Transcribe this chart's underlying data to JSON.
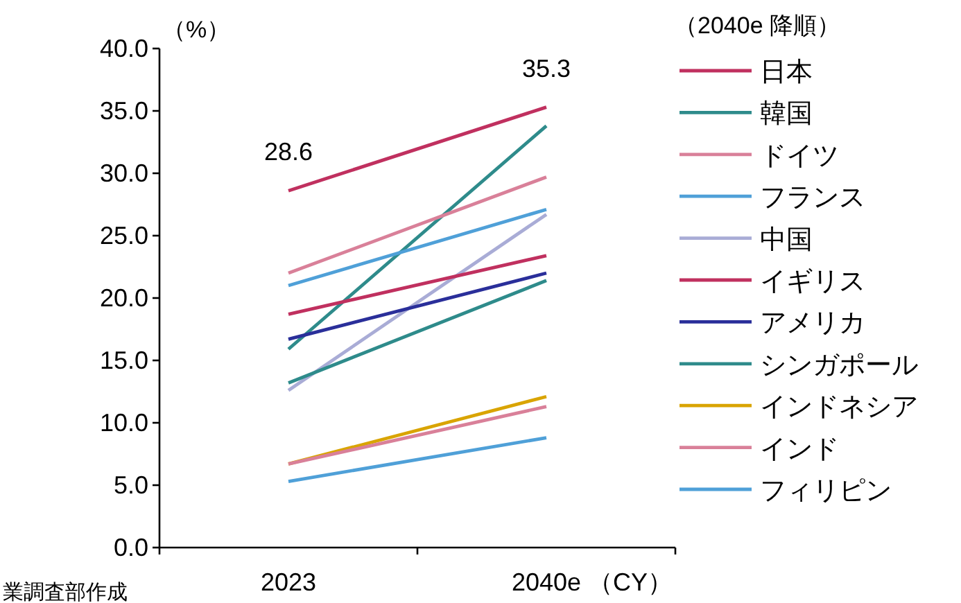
{
  "chart_data": {
    "type": "line",
    "ylabel": "（%）",
    "xlabel": "（CY）",
    "legend_title": "（2040e 降順）",
    "legend": "right",
    "categories": [
      "2023",
      "2040e"
    ],
    "ylim": [
      0,
      40
    ],
    "yticks": [
      {
        "value": 0,
        "label": "0.0"
      },
      {
        "value": 5,
        "label": "5.0"
      },
      {
        "value": 10,
        "label": "10.0"
      },
      {
        "value": 15,
        "label": "15.0"
      },
      {
        "value": 20,
        "label": "20.0"
      },
      {
        "value": 25,
        "label": "25.0"
      },
      {
        "value": 30,
        "label": "30.0"
      },
      {
        "value": 35,
        "label": "35.0"
      },
      {
        "value": 40,
        "label": "40.0"
      }
    ],
    "series": [
      {
        "name": "日本",
        "color": "#c0305f",
        "values": [
          28.6,
          35.3
        ],
        "value_labels": [
          "28.6",
          "35.3"
        ]
      },
      {
        "name": "韓国",
        "color": "#2e8b8b",
        "values": [
          15.9,
          33.8
        ]
      },
      {
        "name": "ドイツ",
        "color": "#d98099",
        "values": [
          22.0,
          29.7
        ]
      },
      {
        "name": "フランス",
        "color": "#4fa0d8",
        "values": [
          21.0,
          27.1
        ]
      },
      {
        "name": "中国",
        "color": "#a9acd6",
        "values": [
          12.6,
          26.7
        ]
      },
      {
        "name": "イギリス",
        "color": "#c0305f",
        "values": [
          18.7,
          23.4
        ]
      },
      {
        "name": "アメリカ",
        "color": "#2a2f9a",
        "values": [
          16.7,
          22.0
        ]
      },
      {
        "name": "シンガポール",
        "color": "#2e8b8b",
        "values": [
          13.2,
          21.4
        ]
      },
      {
        "name": "インドネシア",
        "color": "#d9a400",
        "values": [
          6.7,
          12.1
        ]
      },
      {
        "name": "インド",
        "color": "#d98099",
        "values": [
          6.7,
          11.3
        ]
      },
      {
        "name": "フィリピン",
        "color": "#4fa0d8",
        "values": [
          5.3,
          8.8
        ]
      }
    ],
    "annotations": [
      "業調査部作成"
    ]
  }
}
